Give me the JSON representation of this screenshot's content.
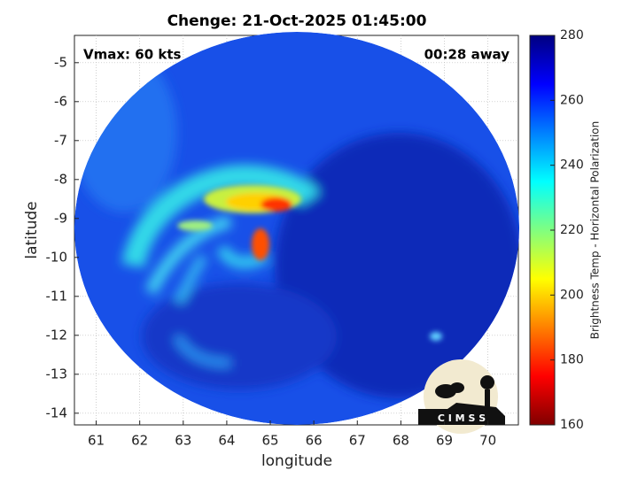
{
  "chart_data": {
    "type": "heatmap",
    "title": "Chenge: 21-Oct-2025 01:45:00",
    "annotations": [
      "Vmax: 60 kts",
      "00:28 away"
    ],
    "xlabel": "longitude",
    "ylabel": "latitude",
    "xlim": [
      60.5,
      70.7
    ],
    "xticks": [
      61,
      62,
      63,
      64,
      65,
      66,
      67,
      68,
      69,
      70
    ],
    "ylim": [
      -14.3,
      -4.3
    ],
    "yticks": [
      -14,
      -13,
      -12,
      -11,
      -10,
      -9,
      -8,
      -7,
      -6,
      -5
    ],
    "grid": true,
    "colorbar": {
      "label": "Brightness Temp - Horizontal Polarization",
      "lim": [
        160,
        280
      ],
      "ticks": [
        160,
        180,
        200,
        220,
        240,
        260,
        280
      ],
      "colormap": [
        "#800000",
        "#ff0000",
        "#ff8000",
        "#ffff00",
        "#80ff80",
        "#00ffff",
        "#0080ff",
        "#0000ff",
        "#000080"
      ]
    },
    "logo": "C I M S S"
  }
}
